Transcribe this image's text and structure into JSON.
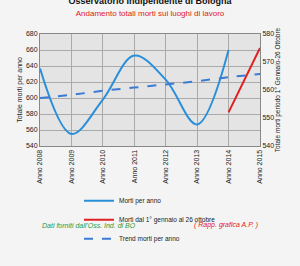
{
  "chart_data": {
    "type": "line",
    "title": "Osservatorio Indipendente di Bologna",
    "subtitle": "Andamento totali morti sui luoghi di lavoro",
    "y_label": "Totale morti per anno",
    "y2_label": "Totale morti periodo 1° Gennaio-26 Ottobre",
    "annotations": [
      "Dati forniti dall'Oss. Ind. di BO",
      "( Rapp. grafica A.P. )"
    ],
    "categories": [
      "Anno 2008",
      "Anno 2009",
      "Anno 2010",
      "Anno 2011",
      "Anno 2012",
      "Anno 2013",
      "Anno 2014",
      "Anno 2015"
    ],
    "series": [
      {
        "name": "Morti per anno",
        "color": "#2a8fd8",
        "line_style": "solid",
        "values": [
          637,
          555,
          598,
          653,
          623,
          567,
          660,
          null
        ]
      },
      {
        "name": "Morti dal 1° gennaio al 26 ottobre",
        "color": "#e02020",
        "line_style": "solid",
        "axis": "y2",
        "values": [
          null,
          null,
          null,
          null,
          null,
          null,
          552,
          575
        ]
      },
      {
        "name": "Trend morti per anno",
        "color": "#3a7bd5",
        "line_style": "dashed",
        "values": [
          600,
          604,
          609,
          613,
          617,
          621,
          626,
          630
        ]
      }
    ],
    "ylim": [
      540,
      680
    ],
    "yticks": [
      540,
      560,
      580,
      600,
      620,
      640,
      660,
      680
    ],
    "y2lim": [
      540,
      580
    ],
    "y2ticks": [
      540,
      550,
      560,
      570,
      580
    ],
    "grid": true,
    "legend": "bottom"
  }
}
